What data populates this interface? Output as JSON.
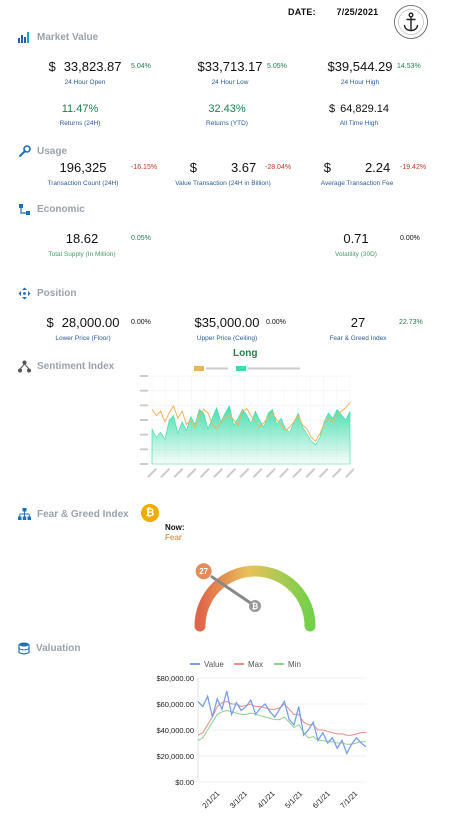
{
  "header": {
    "date_label": "DATE:",
    "date_value": "7/25/2021"
  },
  "colors": {
    "up": "#1e7f4f",
    "down": "#c0392b",
    "label": "#2b5c9a",
    "section": "#9aa3ad",
    "bitcoin": "#f2a900"
  },
  "icons": {
    "market_value": "bar-chart-icon",
    "usage": "wrench-icon",
    "economic": "org-chart-icon",
    "position": "move-arrows-icon",
    "sentiment": "network-icon",
    "fear_greed": "hierarchy-icon",
    "valuation": "database-icon",
    "bitcoin": "bitcoin-icon"
  },
  "market_value": {
    "title": "Market Value",
    "open": {
      "currency": "$",
      "value": "33,823.87",
      "pct": "5.04%",
      "label": "24 Hour Open"
    },
    "low": {
      "currency": "$",
      "value": "33,713.17",
      "pct": "5.05%",
      "label": "24 Hour Low"
    },
    "high": {
      "currency": "$",
      "value": "39,544.29",
      "pct": "14.53%",
      "label": "24 Hour High"
    },
    "returns_24h": {
      "value": "11.47%",
      "label": "Returns (24H)"
    },
    "returns_ytd": {
      "value": "32.43%",
      "label": "Returns (YTD)"
    },
    "ath": {
      "currency": "$",
      "value": "64,829.14",
      "label": "All Time High"
    }
  },
  "usage": {
    "title": "Usage",
    "tx_count": {
      "value": "196,325",
      "pct": "-16.15%",
      "label": "Transaction Count (24H)"
    },
    "tx_value": {
      "currency": "$",
      "value": "3.67",
      "pct": "-28.04%",
      "label": "Value Transaction (24H in Billion)"
    },
    "avg_fee": {
      "currency": "$",
      "value": "2.24",
      "pct": "-19.42%",
      "label": "Average Transaction Fee"
    }
  },
  "economic": {
    "title": "Economic",
    "supply": {
      "value": "18.62",
      "pct": "0.05%",
      "label": "Total Supply (In Million)"
    },
    "volatility": {
      "value": "0.71",
      "pct": "0.00%",
      "label": "Volatility (30D)"
    }
  },
  "position": {
    "title": "Position",
    "floor": {
      "currency": "$",
      "value": "28,000.00",
      "pct": "0.00%",
      "label": "Lower Price (Floor)"
    },
    "ceiling": {
      "currency": "$",
      "value": "35,000.00",
      "pct": "0.00%",
      "label": "Upper Price (Ceiling)"
    },
    "fear_greed": {
      "value": "27",
      "pct": "22.73%",
      "label": "Fear & Greed Index"
    }
  },
  "sentiment": {
    "title": "Sentiment Index",
    "stance": "Long"
  },
  "fear_greed_section": {
    "title": "Fear & Greed Index",
    "now_label": "Now:",
    "now_state": "Fear",
    "index_value": 27,
    "gauge_value": "27",
    "max": 100
  },
  "valuation_title": "Valuation",
  "chart_data": [
    {
      "type": "area",
      "series": [
        {
          "color": "#f0b35a",
          "values": [
            62,
            55,
            60,
            48,
            58,
            66,
            52,
            60,
            45,
            50,
            41,
            55,
            62,
            58,
            45,
            40,
            48,
            52,
            56,
            50,
            44,
            60,
            63,
            55,
            48,
            42,
            47,
            53,
            58,
            50,
            45,
            38,
            42,
            48,
            55,
            44,
            40,
            30,
            26,
            34,
            46,
            52,
            48,
            56,
            60,
            64,
            70
          ]
        },
        {
          "color": "#3ddcaa",
          "values": [
            40,
            30,
            36,
            28,
            50,
            55,
            35,
            48,
            38,
            54,
            45,
            62,
            58,
            40,
            52,
            64,
            48,
            58,
            66,
            44,
            52,
            62,
            56,
            46,
            60,
            50,
            42,
            58,
            62,
            45,
            52,
            40,
            36,
            48,
            58,
            42,
            34,
            26,
            22,
            30,
            48,
            58,
            52,
            62,
            56,
            50,
            60
          ]
        }
      ],
      "ylim": [
        0,
        100
      ]
    },
    {
      "type": "line",
      "series": [
        {
          "name": "Value",
          "color": "#7a9ee8"
        },
        {
          "name": "Max",
          "color": "#e88a8a"
        },
        {
          "name": "Min",
          "color": "#8cd08c"
        }
      ],
      "ylim": [
        0,
        80000
      ],
      "yticks": [
        "$80,000.00",
        "$60,000.00",
        "$40,000.00",
        "$20,000.00",
        "$0.00"
      ],
      "xticks": [
        "2/1/21",
        "3/1/21",
        "4/1/21",
        "5/1/21",
        "6/1/21",
        "7/1/21"
      ],
      "value_series": [
        62000,
        58000,
        66000,
        50000,
        64000,
        56000,
        70000,
        52000,
        61000,
        55000,
        58000,
        63000,
        52000,
        57000,
        60000,
        54000,
        50000,
        56000,
        62000,
        48000,
        44000,
        58000,
        36000,
        40000,
        46000,
        32000,
        38000,
        30000,
        34000,
        26000,
        32000,
        22000,
        29000,
        34000,
        30000,
        27000
      ],
      "max_series": [
        36000,
        38000,
        44000,
        50000,
        58000,
        61000,
        62000,
        60000,
        60000,
        58000,
        59000,
        60000,
        58000,
        58000,
        57000,
        56000,
        56000,
        57000,
        60000,
        56000,
        52000,
        52000,
        46000,
        44000,
        44000,
        40000,
        40000,
        39000,
        38000,
        37000,
        37000,
        36000,
        36000,
        37000,
        38000,
        38000
      ],
      "min_series": [
        32000,
        34000,
        40000,
        46000,
        52000,
        54000,
        55000,
        54000,
        53000,
        52000,
        52000,
        53000,
        52000,
        51000,
        50000,
        49000,
        48000,
        48000,
        50000,
        46000,
        42000,
        44000,
        38000,
        34000,
        35000,
        32000,
        32000,
        31000,
        31000,
        30000,
        30000,
        29000,
        29000,
        30000,
        31000,
        31000
      ]
    }
  ]
}
